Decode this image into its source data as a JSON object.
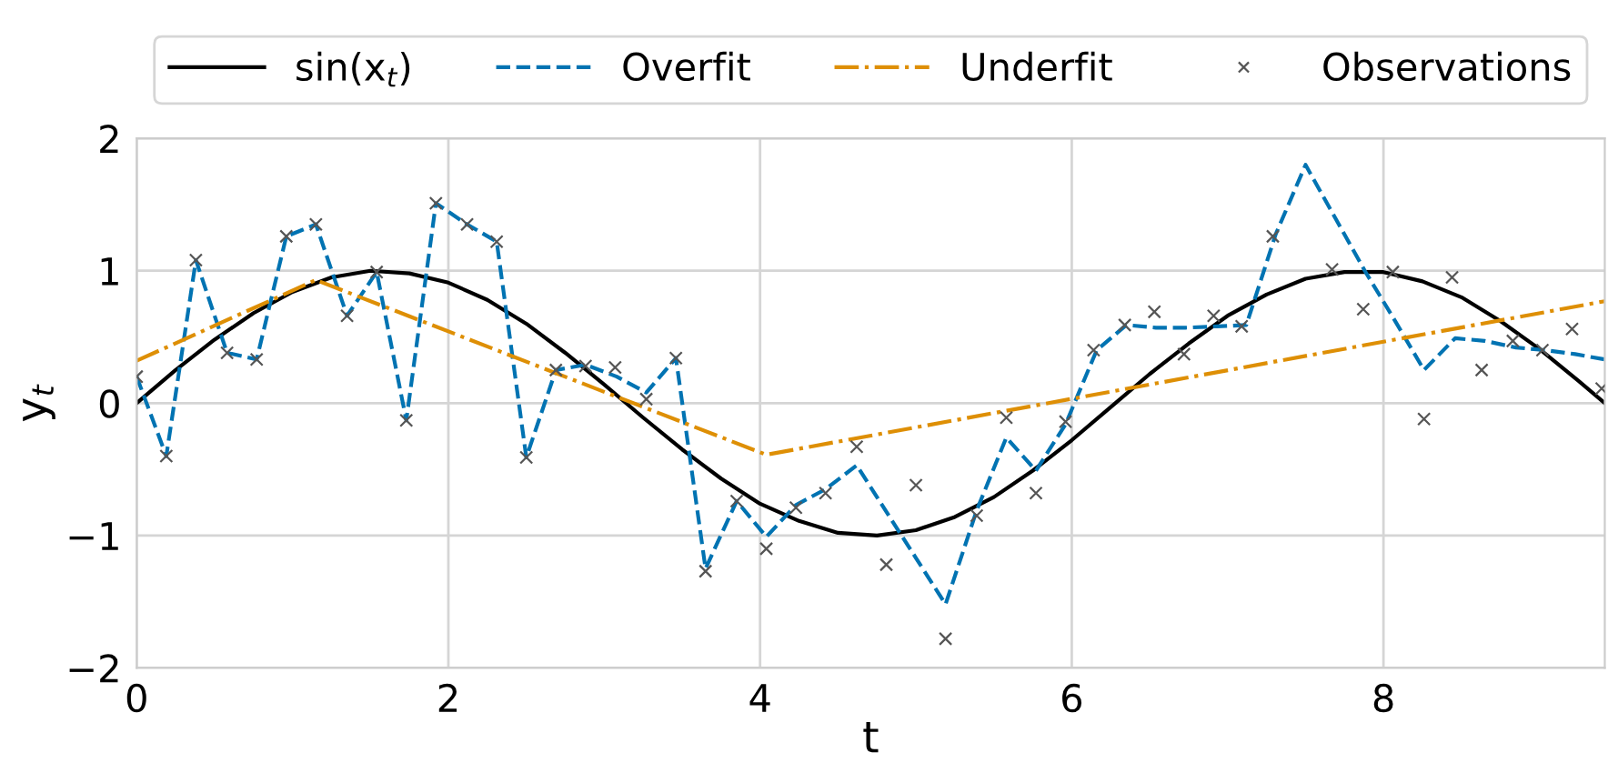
{
  "chart_data": {
    "type": "line",
    "xlabel": "t",
    "ylabel": "y$_{t}$",
    "xlim": [
      0,
      9.42
    ],
    "ylim": [
      -2,
      2
    ],
    "xticks": [
      0,
      2,
      4,
      6,
      8
    ],
    "yticks": [
      -2,
      -1,
      0,
      1,
      2
    ],
    "grid": true,
    "legend": "top",
    "series": [
      {
        "name": "sin(x$_{t}$)",
        "color": "#000000",
        "line_style": "solid",
        "marker": "none",
        "x": [
          0,
          0.25,
          0.5,
          0.75,
          1,
          1.25,
          1.5,
          1.75,
          2,
          2.25,
          2.5,
          2.75,
          3,
          3.25,
          3.5,
          3.75,
          4,
          4.25,
          4.5,
          4.75,
          5,
          5.25,
          5.5,
          5.75,
          6,
          6.25,
          6.5,
          6.75,
          7,
          7.25,
          7.5,
          7.75,
          8,
          8.25,
          8.5,
          8.75,
          9,
          9.25,
          9.42
        ],
        "values": [
          0,
          0.25,
          0.48,
          0.68,
          0.84,
          0.95,
          1.0,
          0.98,
          0.91,
          0.78,
          0.6,
          0.38,
          0.14,
          -0.11,
          -0.35,
          -0.57,
          -0.76,
          -0.89,
          -0.98,
          -1.0,
          -0.96,
          -0.86,
          -0.71,
          -0.51,
          -0.28,
          -0.03,
          0.22,
          0.45,
          0.66,
          0.82,
          0.94,
          0.99,
          0.99,
          0.92,
          0.8,
          0.62,
          0.41,
          0.17,
          0
        ]
      },
      {
        "name": "Overfit",
        "color": "#0173b2",
        "line_style": "dashed",
        "marker": "none",
        "x": [
          0,
          0.19,
          0.38,
          0.58,
          0.77,
          0.96,
          1.15,
          1.35,
          1.54,
          1.73,
          1.92,
          2.12,
          2.31,
          2.5,
          2.69,
          2.88,
          3.08,
          3.27,
          3.46,
          3.65,
          3.85,
          4.04,
          4.23,
          4.42,
          4.62,
          4.81,
          5.0,
          5.19,
          5.39,
          5.58,
          5.77,
          5.96,
          6.16,
          6.35,
          6.54,
          6.73,
          6.93,
          7.12,
          7.31,
          7.5,
          7.69,
          7.88,
          8.07,
          8.26,
          8.46,
          8.65,
          8.85,
          9.04,
          9.23,
          9.42
        ],
        "values": [
          0.2,
          -0.4,
          1.08,
          0.38,
          0.33,
          1.26,
          1.35,
          0.66,
          0.99,
          -0.13,
          1.51,
          1.35,
          1.22,
          -0.41,
          0.25,
          0.29,
          0.2,
          0.08,
          0.34,
          -1.25,
          -0.74,
          -1.01,
          -0.77,
          -0.65,
          -0.47,
          -0.82,
          -1.17,
          -1.52,
          -0.81,
          -0.26,
          -0.51,
          -0.16,
          0.4,
          0.59,
          0.57,
          0.57,
          0.58,
          0.59,
          1.28,
          1.8,
          1.4,
          1.0,
          0.63,
          0.25,
          0.49,
          0.47,
          0.42,
          0.4,
          0.37,
          0.33
        ]
      },
      {
        "name": "Underfit",
        "color": "#de8f05",
        "line_style": "dashdot",
        "marker": "none",
        "x": [
          0,
          1.15,
          4.04,
          9.42
        ],
        "values": [
          0.32,
          0.93,
          -0.39,
          0.77
        ]
      },
      {
        "name": "Observations",
        "type": "scatter",
        "color": "#555555",
        "marker": "cross",
        "x": [
          0,
          0.19,
          0.38,
          0.58,
          0.77,
          0.96,
          1.15,
          1.35,
          1.54,
          1.73,
          1.92,
          2.12,
          2.31,
          2.5,
          2.69,
          2.88,
          3.07,
          3.27,
          3.46,
          3.65,
          3.85,
          4.04,
          4.23,
          4.42,
          4.62,
          4.81,
          5.0,
          5.19,
          5.39,
          5.58,
          5.77,
          5.96,
          6.14,
          6.34,
          6.53,
          6.72,
          6.91,
          7.09,
          7.29,
          7.67,
          7.87,
          8.06,
          8.26,
          8.44,
          8.63,
          8.83,
          9.02,
          9.21,
          9.4
        ],
        "values": [
          0.2,
          -0.4,
          1.08,
          0.38,
          0.33,
          1.26,
          1.35,
          0.66,
          0.99,
          -0.13,
          1.51,
          1.35,
          1.22,
          -0.41,
          0.25,
          0.28,
          0.27,
          0.03,
          0.34,
          -1.27,
          -0.74,
          -1.1,
          -0.79,
          -0.68,
          -0.33,
          -1.22,
          -0.62,
          -1.78,
          -0.85,
          -0.11,
          -0.68,
          -0.14,
          0.4,
          0.59,
          0.69,
          0.37,
          0.66,
          0.58,
          1.26,
          1.01,
          0.71,
          0.99,
          -0.12,
          0.95,
          0.25,
          0.47,
          0.4,
          0.56,
          0.11
        ]
      }
    ]
  }
}
